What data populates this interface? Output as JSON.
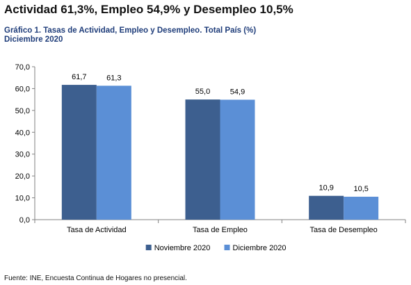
{
  "headline": "Actividad 61,3%, Empleo 54,9% y Desempleo 10,5%",
  "chart_title_line1": "Gráfico 1. Tasas de Actividad, Empleo y Desempleo. Total País (%)",
  "chart_title_line2": "Diciembre 2020",
  "source": "Fuente: INE, Encuesta Continua de Hogares no presencial.",
  "chart_data": {
    "type": "bar",
    "categories": [
      "Tasa de Actividad",
      "Tasa de Empleo",
      "Tasa de Desempleo"
    ],
    "series": [
      {
        "name": "Noviembre 2020",
        "values": [
          61.7,
          55.0,
          10.9
        ],
        "labels": [
          "61,7",
          "55,0",
          "10,9"
        ],
        "color": "#3d5f8f"
      },
      {
        "name": "Diciembre 2020",
        "values": [
          61.3,
          54.9,
          10.5
        ],
        "labels": [
          "61,3",
          "54,9",
          "10,5"
        ],
        "color": "#5b8fd6"
      }
    ],
    "ylim": [
      0,
      70
    ],
    "yticks": [
      0,
      10,
      20,
      30,
      40,
      50,
      60,
      70
    ],
    "ytick_labels": [
      "0,0",
      "10,0",
      "20,0",
      "30,0",
      "40,0",
      "50,0",
      "60,0",
      "70,0"
    ],
    "grid": false,
    "legend_position": "bottom"
  }
}
